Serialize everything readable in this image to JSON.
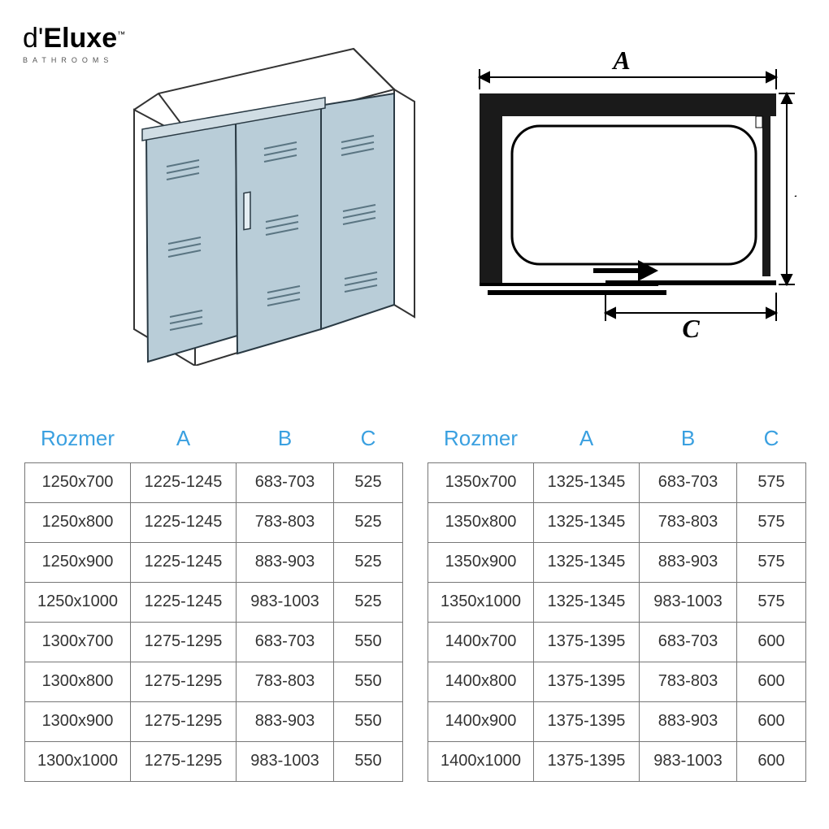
{
  "brand": {
    "prefix": "d'",
    "main": "Eluxe",
    "tm": "™",
    "sub": "BATHROOMS"
  },
  "diagram2d": {
    "label_a": "A",
    "label_b": "B",
    "label_c": "C",
    "stroke": "#000000",
    "fill_dark": "#1a1a1a",
    "font": "bold italic 32px serif"
  },
  "illus3d": {
    "wall_stroke": "#333333",
    "glass_fill": "#b9cdd8",
    "glass_stroke": "#2a3a44",
    "vent_stroke": "#5a7582"
  },
  "tables": {
    "header_color": "#3aa0e0",
    "cell_color": "#333333",
    "border_color": "#777777",
    "header_fontsize": 26,
    "cell_fontsize": 20,
    "columns": [
      "Rozmer",
      "A",
      "B",
      "C"
    ],
    "left": [
      [
        "1250x700",
        "1225-1245",
        "683-703",
        "525"
      ],
      [
        "1250x800",
        "1225-1245",
        "783-803",
        "525"
      ],
      [
        "1250x900",
        "1225-1245",
        "883-903",
        "525"
      ],
      [
        "1250x1000",
        "1225-1245",
        "983-1003",
        "525"
      ],
      [
        "1300x700",
        "1275-1295",
        "683-703",
        "550"
      ],
      [
        "1300x800",
        "1275-1295",
        "783-803",
        "550"
      ],
      [
        "1300x900",
        "1275-1295",
        "883-903",
        "550"
      ],
      [
        "1300x1000",
        "1275-1295",
        "983-1003",
        "550"
      ]
    ],
    "right": [
      [
        "1350x700",
        "1325-1345",
        "683-703",
        "575"
      ],
      [
        "1350x800",
        "1325-1345",
        "783-803",
        "575"
      ],
      [
        "1350x900",
        "1325-1345",
        "883-903",
        "575"
      ],
      [
        "1350x1000",
        "1325-1345",
        "983-1003",
        "575"
      ],
      [
        "1400x700",
        "1375-1395",
        "683-703",
        "600"
      ],
      [
        "1400x800",
        "1375-1395",
        "783-803",
        "600"
      ],
      [
        "1400x900",
        "1375-1395",
        "883-903",
        "600"
      ],
      [
        "1400x1000",
        "1375-1395",
        "983-1003",
        "600"
      ]
    ]
  }
}
